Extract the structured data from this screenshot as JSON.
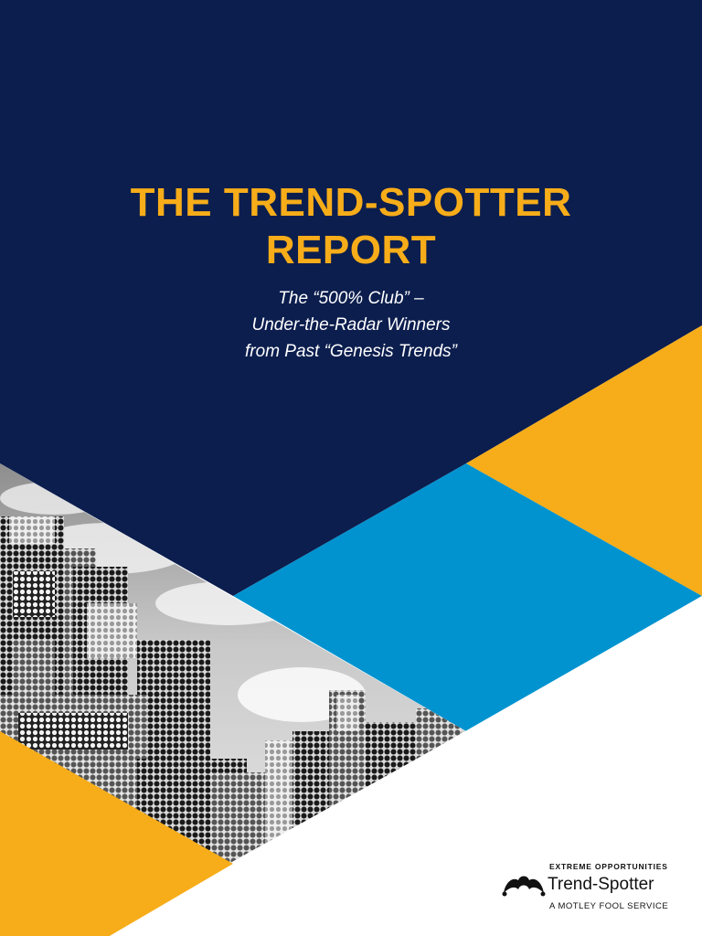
{
  "report": {
    "title_lines": [
      "THE TREND-SPOTTER",
      "REPORT"
    ],
    "subtitle_lines": [
      "The “500% Club” –",
      "Under-the-Radar Winners",
      "from Past “Genesis Trends”"
    ]
  },
  "brand": {
    "tagline": "EXTREME OPPORTUNITIES",
    "name": "Trend-Spotter",
    "service": "A MOTLEY FOOL SERVICE",
    "logo_icon": "jester-hat-icon"
  },
  "colors": {
    "navy": "#0c1e4e",
    "gold": "#f7ad19",
    "sky_blue": "#0193cf",
    "white": "#ffffff"
  }
}
